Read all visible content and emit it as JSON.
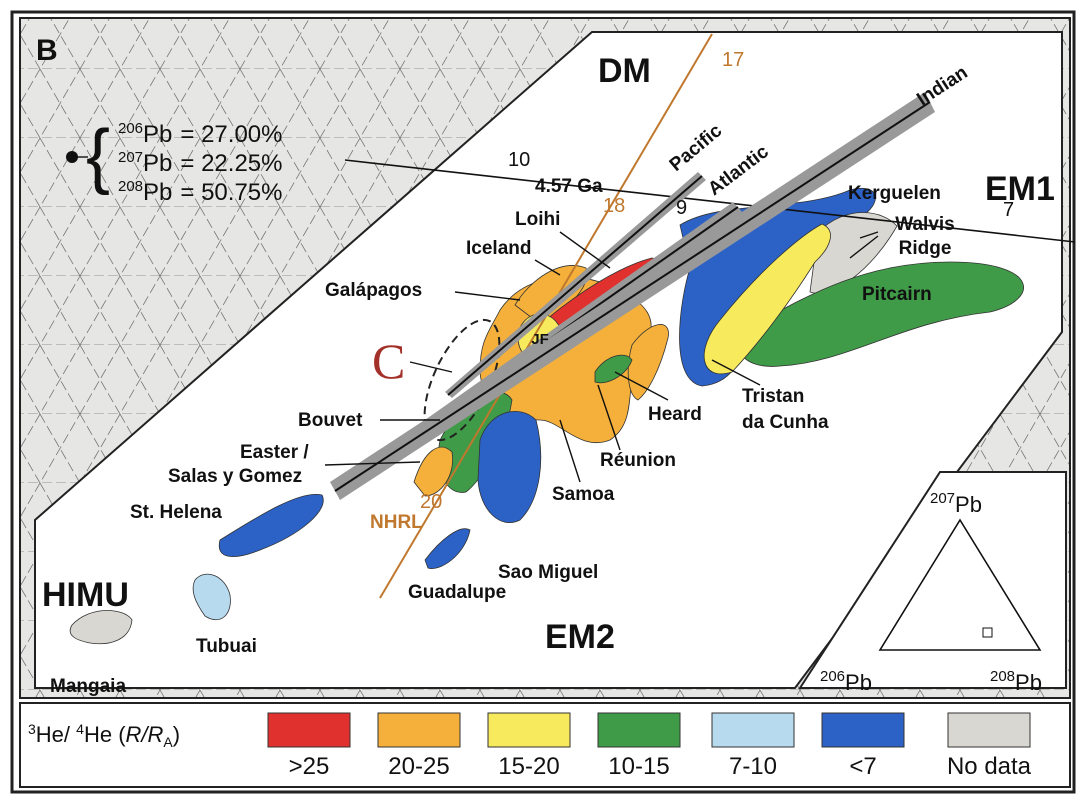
{
  "panel_label": "B",
  "end_members": {
    "dm": "DM",
    "em1": "EM1",
    "em2": "EM2",
    "himu": "HIMU"
  },
  "composition": [
    {
      "isotope": "206",
      "element": "Pb",
      "value": "= 27.00%"
    },
    {
      "isotope": "207",
      "element": "Pb",
      "value": "= 22.25%"
    },
    {
      "isotope": "208",
      "element": "Pb",
      "value": "= 50.75%"
    }
  ],
  "arrays": {
    "pacific": "Pacific",
    "atlantic": "Atlantic",
    "indian": "Indian"
  },
  "nhrl": {
    "label": "NHRL",
    "ticks": [
      "17",
      "18",
      "20"
    ]
  },
  "geochron": {
    "label": "4.57 Ga",
    "ticks": [
      "10",
      "9",
      "7"
    ]
  },
  "field_c": "C",
  "localities": {
    "kerguelen": "Kerguelen",
    "walvis": [
      "Walvis",
      "Ridge"
    ],
    "pitcairn": "Pitcairn",
    "loihi": "Loihi",
    "iceland": "Iceland",
    "galapagos": "Galápagos",
    "jf": "JF",
    "heard": "Heard",
    "tristan": [
      "Tristan",
      "da Cunha"
    ],
    "bouvet": "Bouvet",
    "reunion": "Réunion",
    "easter": [
      "Easter /",
      "Salas y Gomez"
    ],
    "samoa": "Samoa",
    "st_helena": "St. Helena",
    "sao_miguel": "Sao Miguel",
    "guadalupe": "Guadalupe",
    "tubuai": "Tubuai",
    "mangaia": "Mangaia"
  },
  "inset": {
    "top": {
      "isotope": "207",
      "element": "Pb"
    },
    "left": {
      "isotope": "206",
      "element": "Pb"
    },
    "right": {
      "isotope": "208",
      "element": "Pb"
    }
  },
  "legend": {
    "title": {
      "sup1": "3",
      "text1": "He/ ",
      "sup2": "4",
      "text2": "He (",
      "ratio": "R/R",
      "sub": "A",
      "close": ")"
    },
    "items": [
      {
        "label": ">25",
        "color": "#e0312f"
      },
      {
        "label": "20-25",
        "color": "#f4b03a"
      },
      {
        "label": "15-20",
        "color": "#f7ea5c"
      },
      {
        "label": "10-15",
        "color": "#3f9b48"
      },
      {
        "label": "7-10",
        "color": "#b8daef"
      },
      {
        "label": "<7",
        "color": "#2c62c6"
      },
      {
        "label": "No data",
        "color": "#d9d7d1"
      }
    ]
  }
}
